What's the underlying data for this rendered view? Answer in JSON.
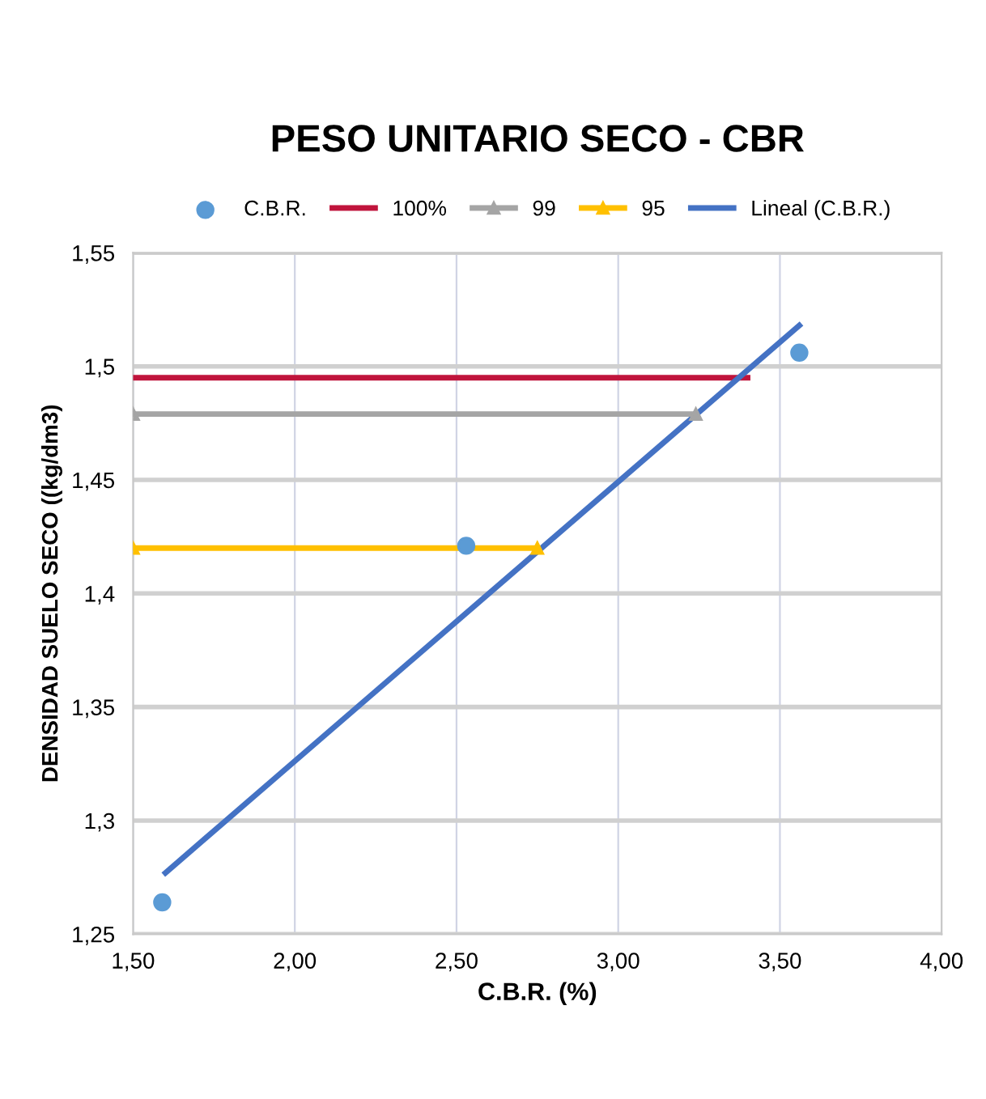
{
  "chart_data": {
    "type": "scatter",
    "title": "PESO UNITARIO SECO - CBR",
    "xlabel": "C.B.R. (%)",
    "ylabel": "DENSIDAD SUELO SECO ((kg/dm3)",
    "xlim": [
      1.5,
      4.0
    ],
    "xticks": [
      {
        "value": 1.5,
        "label": "1,50"
      },
      {
        "value": 2.0,
        "label": "2,00"
      },
      {
        "value": 2.5,
        "label": "2,50"
      },
      {
        "value": 3.0,
        "label": "3,00"
      },
      {
        "value": 3.5,
        "label": "3,50"
      },
      {
        "value": 4.0,
        "label": "4,00"
      }
    ],
    "ylim": [
      1.25,
      1.55
    ],
    "yticks": [
      {
        "value": 1.25,
        "label": "1,25"
      },
      {
        "value": 1.3,
        "label": "1,3"
      },
      {
        "value": 1.35,
        "label": "1,35"
      },
      {
        "value": 1.4,
        "label": "1,4"
      },
      {
        "value": 1.45,
        "label": "1,45"
      },
      {
        "value": 1.5,
        "label": "1,5"
      },
      {
        "value": 1.55,
        "label": "1,55"
      }
    ],
    "grid": true,
    "legend": "top",
    "series": [
      {
        "name": "C.B.R.",
        "color": "#5b9bd5",
        "marker": "circle",
        "x": [
          1.59,
          2.53,
          3.56
        ],
        "values": [
          1.264,
          1.421,
          1.506
        ]
      },
      {
        "name": "100%",
        "type": "line",
        "color": "#c0143c",
        "marker": "none",
        "x": [
          1.5,
          3.4
        ],
        "values": [
          1.495,
          1.495
        ]
      },
      {
        "name": "99",
        "type": "line",
        "color": "#a5a5a5",
        "marker": "triangle",
        "x": [
          1.5,
          3.24
        ],
        "values": [
          1.479,
          1.479
        ]
      },
      {
        "name": "95",
        "type": "line",
        "color": "#ffc000",
        "marker": "triangle",
        "x": [
          1.5,
          2.75
        ],
        "values": [
          1.42,
          1.42
        ]
      },
      {
        "name": "Lineal (C.B.R.)",
        "type": "line",
        "color": "#4472c4",
        "marker": "none",
        "x": [
          1.6,
          3.56
        ],
        "values": [
          1.277,
          1.518
        ]
      }
    ]
  }
}
